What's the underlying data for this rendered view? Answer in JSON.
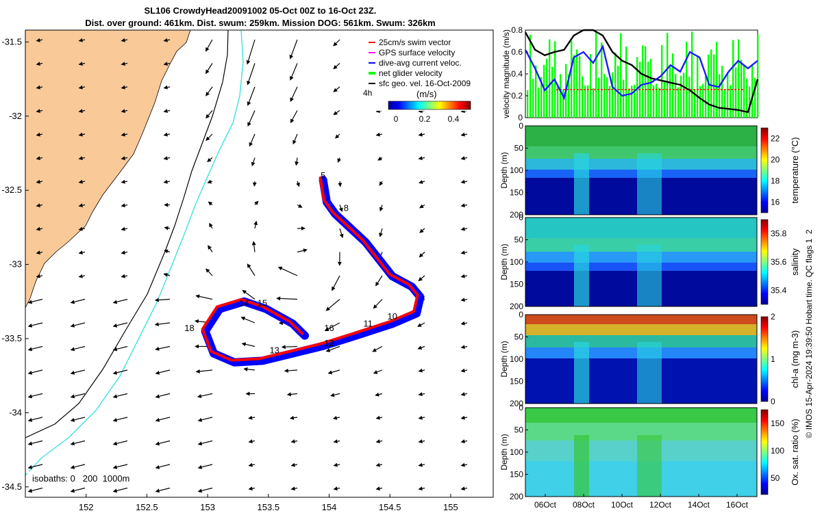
{
  "title": {
    "line1": "SL106 CrowdyHead20091002 05-Oct 00Z to 16-Oct 23Z.",
    "line2": "Dist. over ground: 461km. Dist. swum: 259km. Mission DOG: 561km. Swum: 326km"
  },
  "colors": {
    "land": "#f9c998",
    "track_blue": "#0000ff",
    "track_red": "#ff0000",
    "isobath_200": "#3fe0e0",
    "isobath_1000": "#000000",
    "net_velocity": "#00ff00",
    "dive_avg": "#1a1aff"
  },
  "chart_data": [
    {
      "type": "map",
      "name": "track-map",
      "x_ticks": [
        "152",
        "152.5",
        "153",
        "153.5",
        "154",
        "154.5",
        "155"
      ],
      "y_ticks": [
        "-31.5",
        "-32",
        "-32.5",
        "-33",
        "-33.5",
        "-34",
        "-34.5"
      ],
      "xlim": [
        151.5,
        155.35
      ],
      "ylim": [
        -34.57,
        -31.42
      ],
      "legend": {
        "position": "top-right",
        "entries": [
          "25cm/s swim vector",
          "GPS surface velocity",
          "dive-avg current veloc.",
          "net glider velocity",
          "sfc geo. vel. 16-Oct-2009"
        ],
        "extra": "4h"
      },
      "colorbar": {
        "label": "(m/s)",
        "ticks": [
          "0",
          "0.2",
          "0.4"
        ],
        "range": [
          0,
          0.5
        ]
      },
      "isobath_label": "isobaths: 0   200  1000m",
      "day_labels": [
        {
          "text": "5",
          "lon": 153.95,
          "lat": -32.42
        },
        {
          "text": "8",
          "lon": 154.14,
          "lat": -32.64
        },
        {
          "text": "10",
          "lon": 154.52,
          "lat": -33.37
        },
        {
          "text": "11",
          "lon": 154.32,
          "lat": -33.42
        },
        {
          "text": "12",
          "lon": 154.0,
          "lat": -33.55
        },
        {
          "text": "13",
          "lon": 153.55,
          "lat": -33.6
        },
        {
          "text": "14",
          "lon": 153.3,
          "lat": -33.28
        },
        {
          "text": "15",
          "lon": 153.45,
          "lat": -33.28
        },
        {
          "text": "16",
          "lon": 154.0,
          "lat": -33.45
        },
        {
          "text": "18",
          "lon": 152.85,
          "lat": -33.45
        }
      ],
      "track": [
        [
          153.95,
          -32.43
        ],
        [
          153.98,
          -32.58
        ],
        [
          154.05,
          -32.66
        ],
        [
          154.3,
          -32.85
        ],
        [
          154.52,
          -33.08
        ],
        [
          154.68,
          -33.15
        ],
        [
          154.75,
          -33.22
        ],
        [
          154.72,
          -33.33
        ],
        [
          154.52,
          -33.4
        ],
        [
          154.22,
          -33.48
        ],
        [
          153.95,
          -33.55
        ],
        [
          153.7,
          -33.6
        ],
        [
          153.45,
          -33.65
        ],
        [
          153.22,
          -33.66
        ],
        [
          153.05,
          -33.6
        ],
        [
          152.98,
          -33.45
        ],
        [
          153.1,
          -33.3
        ],
        [
          153.3,
          -33.25
        ],
        [
          153.48,
          -33.3
        ],
        [
          153.7,
          -33.4
        ],
        [
          153.8,
          -33.48
        ]
      ]
    },
    {
      "type": "line",
      "name": "velocity-panel",
      "ylabel": "velocity magnitude (m/s)",
      "y_ticks": [
        "0",
        "0.2",
        "0.4",
        "0.6",
        "0.8"
      ],
      "ylim": [
        0,
        0.8
      ],
      "xlim": [
        0,
        12
      ],
      "series": [
        {
          "values": [
            [
              0,
              0.78
            ],
            [
              0.5,
              0.62
            ],
            [
              1,
              0.57
            ],
            [
              1.5,
              0.6
            ],
            [
              2,
              0.62
            ],
            [
              2.5,
              0.75
            ],
            [
              3,
              0.8
            ],
            [
              3.5,
              0.8
            ],
            [
              4,
              0.75
            ],
            [
              4.5,
              0.6
            ],
            [
              5,
              0.52
            ],
            [
              5.5,
              0.48
            ],
            [
              6,
              0.4
            ],
            [
              6.5,
              0.36
            ],
            [
              7,
              0.34
            ],
            [
              7.5,
              0.32
            ],
            [
              8,
              0.3
            ],
            [
              8.5,
              0.25
            ],
            [
              9,
              0.18
            ],
            [
              9.5,
              0.12
            ],
            [
              10,
              0.09
            ],
            [
              10.5,
              0.08
            ],
            [
              11,
              0.07
            ],
            [
              11.5,
              0.05
            ],
            [
              12,
              0.35
            ]
          ]
        },
        {
          "values": [
            [
              0,
              0.62
            ],
            [
              0.5,
              0.45
            ],
            [
              1,
              0.25
            ],
            [
              1.5,
              0.35
            ],
            [
              2,
              0.18
            ],
            [
              2.5,
              0.55
            ],
            [
              3,
              0.6
            ],
            [
              3.5,
              0.5
            ],
            [
              4,
              0.65
            ],
            [
              4.5,
              0.28
            ],
            [
              5,
              0.2
            ],
            [
              5.5,
              0.22
            ],
            [
              6,
              0.3
            ],
            [
              6.5,
              0.32
            ],
            [
              7,
              0.38
            ],
            [
              7.5,
              0.48
            ],
            [
              8,
              0.42
            ],
            [
              8.5,
              0.6
            ],
            [
              9,
              0.55
            ],
            [
              9.5,
              0.3
            ],
            [
              10,
              0.28
            ],
            [
              10.5,
              0.42
            ],
            [
              11,
              0.52
            ],
            [
              11.5,
              0.45
            ],
            [
              12,
              0.52
            ]
          ]
        }
      ]
    },
    {
      "type": "heatmap",
      "name": "temperature-panel",
      "ylabel": "Depth (m)",
      "y_ticks": [
        "0",
        "50",
        "100",
        "150",
        "200"
      ],
      "ylim": [
        200,
        0
      ],
      "colorbar_label": "temperature (°C)",
      "colorbar_ticks": [
        "16",
        "18",
        "20",
        "22"
      ],
      "clim": [
        15,
        23
      ]
    },
    {
      "type": "heatmap",
      "name": "salinity-panel",
      "ylabel": "Depth (m)",
      "y_ticks": [
        "0",
        "50",
        "100",
        "150",
        "200"
      ],
      "ylim": [
        200,
        0
      ],
      "colorbar_label": "salinity",
      "colorbar_ticks": [
        "35.4",
        "35.6",
        "35.8"
      ],
      "clim": [
        35.3,
        35.9
      ]
    },
    {
      "type": "heatmap",
      "name": "chla-panel",
      "ylabel": "Depth (m)",
      "y_ticks": [
        "0",
        "50",
        "100",
        "150",
        "200"
      ],
      "ylim": [
        200,
        0
      ],
      "colorbar_label": "chl-a (mg m-3)",
      "colorbar_ticks": [
        "0",
        "1",
        "2"
      ],
      "clim": [
        0,
        2
      ]
    },
    {
      "type": "heatmap",
      "name": "oxygen-panel",
      "ylabel": "Depth (m)",
      "y_ticks": [
        "0",
        "50",
        "100",
        "150",
        "200"
      ],
      "ylim": [
        200,
        0
      ],
      "colorbar_label": "Ox. sat. ratio (%)",
      "colorbar_ticks": [
        "50",
        "100",
        "150"
      ],
      "clim": [
        20,
        175
      ],
      "x_ticks": [
        "06Oct",
        "08Oct",
        "10Oct",
        "12Oct",
        "14Oct",
        "16Oct"
      ]
    }
  ],
  "side_label": "© IMOS 15-Apr-2024 19:39:50 Hobart time. QC flags 1  2"
}
